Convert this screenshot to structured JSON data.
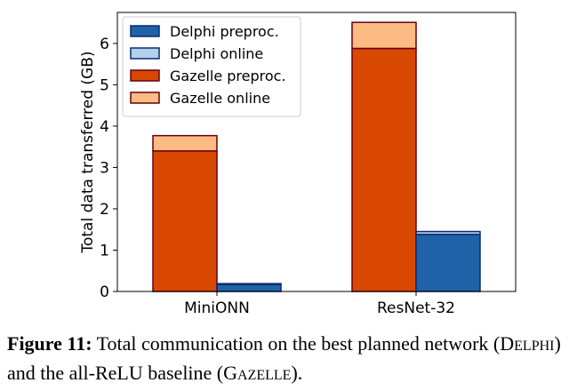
{
  "chart_data": {
    "type": "bar",
    "categories": [
      "MiniONN",
      "ResNet-32"
    ],
    "ylabel": "Total data transferred (GB)",
    "xlabel": "",
    "ylim": [
      0,
      6.75
    ],
    "yticks": [
      0,
      1,
      2,
      3,
      4,
      5,
      6
    ],
    "stacked": true,
    "grid": false,
    "legend_position": "top-left",
    "series": [
      {
        "name": "Delphi preproc.",
        "group": "Delphi",
        "values": [
          0.17,
          1.38
        ],
        "color": "#1f62a8"
      },
      {
        "name": "Delphi online",
        "group": "Delphi",
        "values": [
          0.02,
          0.07
        ],
        "color": "#b3d0ea"
      },
      {
        "name": "Gazelle preproc.",
        "group": "Gazelle",
        "values": [
          3.4,
          5.88
        ],
        "color": "#d94801"
      },
      {
        "name": "Gazelle online",
        "group": "Gazelle",
        "values": [
          0.37,
          0.63
        ],
        "color": "#fdbb84"
      }
    ],
    "edge_colors": {
      "Delphi": "#0b2a6e",
      "Gazelle": "#67000d"
    }
  },
  "caption": {
    "label": "Figure 11:",
    "text_1": " Total communication on the best planned network (",
    "delphi_first": "D",
    "delphi_rest": "ELPHI",
    "text_2": ") and the all-ReLU baseline (",
    "gazelle_first": "G",
    "gazelle_rest": "AZELLE",
    "text_3": ")."
  }
}
